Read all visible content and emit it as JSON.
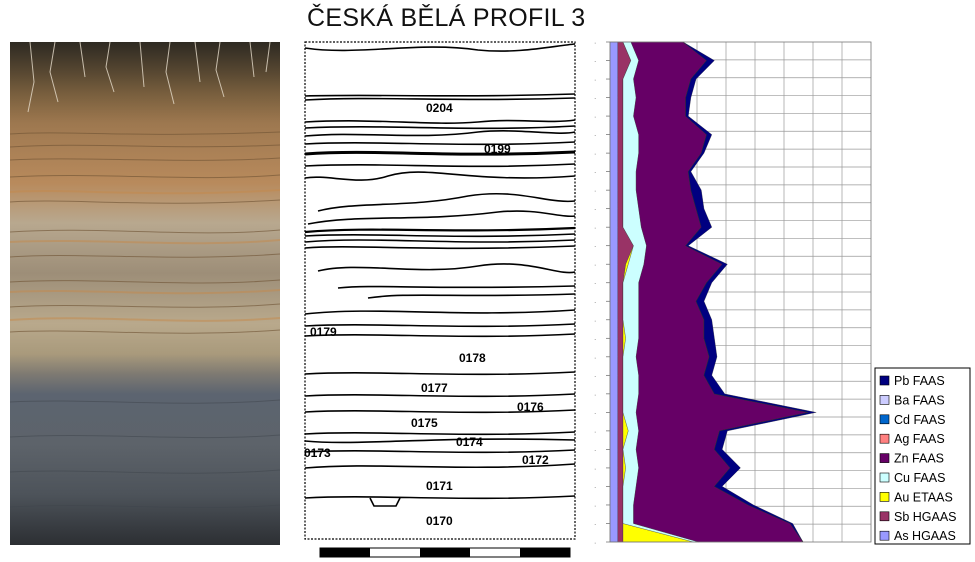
{
  "title": "ČESKÁ BĚLÁ PROFIL 3",
  "sketch": {
    "layer_labels": [
      "0204",
      "0199",
      "0179",
      "0178",
      "0177",
      "0176",
      "0175",
      "0174",
      "0173",
      "0172",
      "0171",
      "0170"
    ]
  },
  "chart_data": {
    "type": "area",
    "stacking": "stacked",
    "orientation": "horizontal",
    "title": "",
    "xlabel": "",
    "ylabel": "",
    "legend_position": "lower-right",
    "grid": true,
    "sample_count": 28,
    "series": [
      {
        "name": "As HGAAS",
        "color": "#9999ff",
        "values": [
          3,
          3,
          3,
          3,
          3,
          3,
          3,
          3,
          3,
          3,
          3,
          3,
          3,
          3,
          3,
          3,
          3,
          3,
          3,
          3,
          3,
          3,
          3,
          3,
          3,
          3,
          3,
          3
        ]
      },
      {
        "name": "Sb HGAAS",
        "color": "#993366",
        "values": [
          2,
          5,
          2,
          2,
          2,
          2,
          2,
          2,
          2,
          2,
          2,
          6,
          3,
          2,
          2,
          2,
          2,
          2,
          2,
          2,
          2,
          2,
          2,
          2,
          2,
          2,
          2,
          2
        ]
      },
      {
        "name": "Au ETAAS",
        "color": "#ffff00",
        "values": [
          0,
          0,
          0,
          0,
          0,
          0,
          0,
          0,
          0,
          0,
          0,
          0,
          1,
          0,
          0,
          0,
          1,
          0,
          0,
          0,
          0,
          2,
          0,
          1,
          0,
          0,
          0,
          27
        ]
      },
      {
        "name": "Cu FAAS",
        "color": "#ccffff",
        "values": [
          3,
          3,
          4,
          5,
          4,
          6,
          6,
          5,
          5,
          6,
          7,
          5,
          6,
          6,
          6,
          6,
          5,
          5,
          6,
          6,
          5,
          4,
          5,
          5,
          5,
          4,
          4,
          2
        ]
      },
      {
        "name": "Zn FAAS",
        "color": "#660066",
        "values": [
          20,
          26,
          22,
          19,
          20,
          26,
          24,
          20,
          21,
          22,
          23,
          15,
          30,
          26,
          22,
          25,
          25,
          28,
          25,
          29,
          66,
          31,
          30,
          35,
          30,
          44,
          60,
          40
        ]
      },
      {
        "name": "Ag FAAS",
        "color": "#ff8080",
        "values": [
          0,
          0,
          0,
          0,
          0,
          0,
          0,
          0,
          0,
          0,
          0,
          0,
          0,
          0,
          0,
          0,
          0,
          0,
          0,
          0,
          0,
          0,
          0,
          0,
          0,
          0,
          0,
          0
        ]
      },
      {
        "name": "Cd FAAS",
        "color": "#0066cc",
        "values": [
          0,
          0,
          0,
          0,
          0,
          0,
          0,
          0,
          0,
          0,
          0,
          0,
          0,
          0,
          0,
          0,
          0,
          0,
          0,
          0,
          0,
          0,
          0,
          0,
          0,
          0,
          0,
          0
        ]
      },
      {
        "name": "Ba FAAS",
        "color": "#ccccff",
        "values": [
          0,
          0,
          0,
          0,
          0,
          0,
          0,
          0,
          0,
          0,
          0,
          0,
          0,
          0,
          0,
          0,
          0,
          0,
          0,
          0,
          0,
          0,
          0,
          0,
          0,
          0,
          0,
          0
        ]
      },
      {
        "name": "Pb FAAS",
        "color": "#000080",
        "values": [
          0,
          3,
          2,
          2,
          1,
          2,
          1,
          1,
          4,
          3,
          4,
          1,
          2,
          2,
          3,
          3,
          4,
          3,
          3,
          4,
          3,
          3,
          3,
          4,
          3,
          2,
          1,
          0
        ]
      }
    ],
    "xlim": [
      0,
      100
    ]
  }
}
